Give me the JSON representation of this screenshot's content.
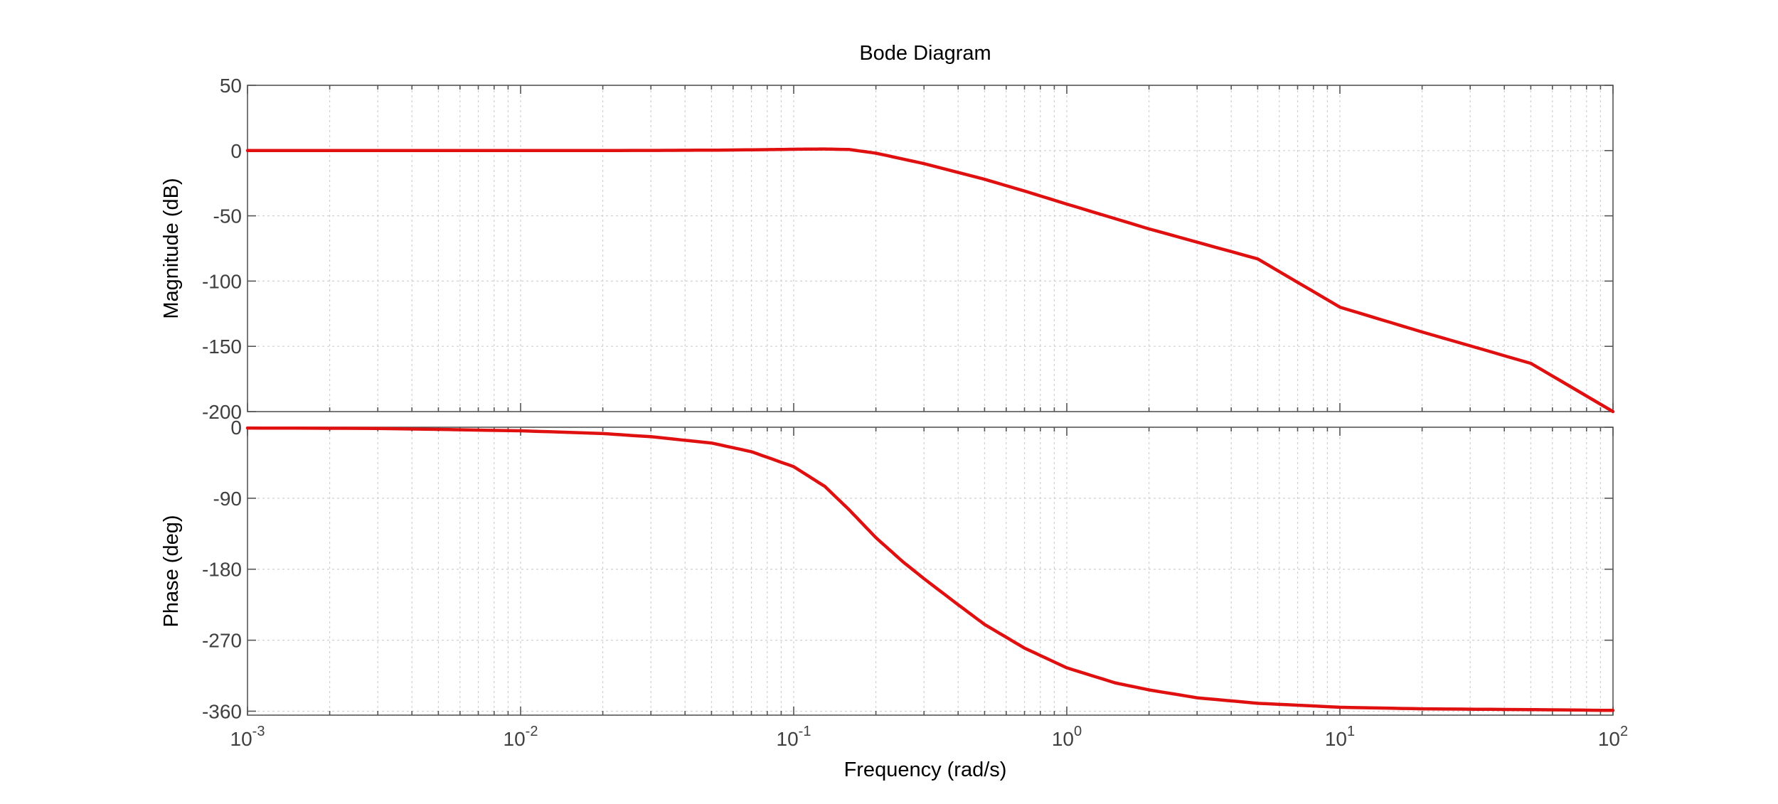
{
  "chart_data": {
    "type": "line",
    "title": "Bode Diagram",
    "xlabel": "Frequency  (rad/s)",
    "xscale": "log",
    "xlim": [
      0.001,
      100
    ],
    "grid": true,
    "x_ticks": [
      {
        "value": 0.001,
        "base": "10",
        "exp": "-3"
      },
      {
        "value": 0.01,
        "base": "10",
        "exp": "-2"
      },
      {
        "value": 0.1,
        "base": "10",
        "exp": "-1"
      },
      {
        "value": 1,
        "base": "10",
        "exp": "0"
      },
      {
        "value": 10,
        "base": "10",
        "exp": "1"
      },
      {
        "value": 100,
        "base": "10",
        "exp": "2"
      }
    ],
    "line_color": "#e01010",
    "panels": [
      {
        "id": "magnitude",
        "ylabel": "Magnitude (dB)",
        "ylim": [
          -200,
          50
        ],
        "yticks": [
          50,
          0,
          -50,
          -100,
          -150,
          -200
        ],
        "ytick_labels": [
          "50",
          "0",
          "-50",
          "-100",
          "-150",
          "-200"
        ],
        "series": [
          {
            "x": [
              0.001,
              0.01,
              0.03,
              0.05,
              0.08,
              0.1,
              0.13,
              0.16,
              0.2,
              0.3,
              0.5,
              0.7,
              1,
              2,
              5,
              10,
              20,
              50,
              100
            ],
            "y": [
              0,
              0,
              0.1,
              0.3,
              0.7,
              1,
              1.2,
              0.8,
              -2,
              -10,
              -22,
              -31,
              -41,
              -60,
              -83,
              -120,
              -139,
              -163,
              -200
            ]
          }
        ]
      },
      {
        "id": "phase",
        "ylabel": "Phase (deg)",
        "ylim": [
          -365,
          0
        ],
        "yticks": [
          0,
          -90,
          -180,
          -270,
          -360
        ],
        "ytick_labels": [
          "0",
          "-90",
          "-180",
          "-270",
          "-360"
        ],
        "series": [
          {
            "x": [
              0.001,
              0.003,
              0.01,
              0.02,
              0.03,
              0.05,
              0.07,
              0.1,
              0.13,
              0.16,
              0.2,
              0.25,
              0.3,
              0.4,
              0.5,
              0.7,
              1,
              1.5,
              2,
              3,
              5,
              10,
              20,
              50,
              100
            ],
            "y": [
              -1,
              -1.5,
              -4.5,
              -8,
              -12,
              -20,
              -31,
              -50,
              -75,
              -105,
              -140,
              -170,
              -192,
              -225,
              -250,
              -280,
              -305,
              -324,
              -333,
              -343,
              -350,
              -355,
              -357,
              -358,
              -359
            ]
          }
        ]
      }
    ]
  }
}
